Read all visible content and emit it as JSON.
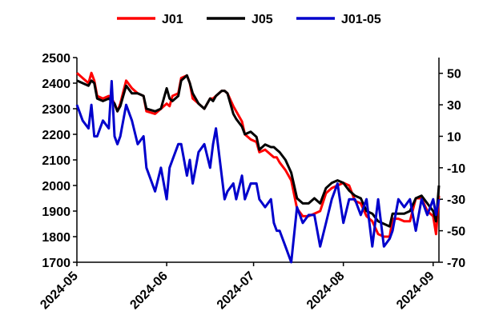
{
  "chart_data": {
    "type": "line",
    "title": "",
    "xlabel": "",
    "ylabel_left": "",
    "ylabel_right": "",
    "legend_position": "top",
    "grid": false,
    "left_axis": {
      "range": [
        1700,
        2500
      ],
      "ticks": [
        1700,
        1800,
        1900,
        2000,
        2100,
        2200,
        2300,
        2400,
        2500
      ]
    },
    "right_axis": {
      "range": [
        -70,
        60
      ],
      "ticks": [
        -70,
        -50,
        -30,
        -10,
        10,
        30,
        50
      ]
    },
    "x_ticks": [
      "2024-05",
      "2024-06",
      "2024-07",
      "2024-08",
      "2024-09"
    ],
    "x_range": [
      "2024-05-01",
      "2024-09-03"
    ],
    "series": [
      {
        "name": "J01",
        "color": "#ff0000",
        "axis": "left",
        "x": [
          "2024-05-01",
          "2024-05-03",
          "2024-05-05",
          "2024-05-06",
          "2024-05-07",
          "2024-05-08",
          "2024-05-10",
          "2024-05-12",
          "2024-05-13",
          "2024-05-14",
          "2024-05-15",
          "2024-05-16",
          "2024-05-18",
          "2024-05-20",
          "2024-05-22",
          "2024-05-24",
          "2024-05-25",
          "2024-05-28",
          "2024-05-30",
          "2024-06-01",
          "2024-06-02",
          "2024-06-03",
          "2024-06-05",
          "2024-06-06",
          "2024-06-08",
          "2024-06-09",
          "2024-06-10",
          "2024-06-11",
          "2024-06-12",
          "2024-06-14",
          "2024-06-16",
          "2024-06-17",
          "2024-06-18",
          "2024-06-20",
          "2024-06-21",
          "2024-06-22",
          "2024-06-24",
          "2024-06-25",
          "2024-06-27",
          "2024-06-28",
          "2024-06-30",
          "2024-07-02",
          "2024-07-03",
          "2024-07-05",
          "2024-07-07",
          "2024-07-08",
          "2024-07-09",
          "2024-07-10",
          "2024-07-12",
          "2024-07-14",
          "2024-07-16",
          "2024-07-18",
          "2024-07-20",
          "2024-07-22",
          "2024-07-24",
          "2024-07-26",
          "2024-07-28",
          "2024-07-30",
          "2024-08-01",
          "2024-08-03",
          "2024-08-05",
          "2024-08-07",
          "2024-08-09",
          "2024-08-11",
          "2024-08-13",
          "2024-08-15",
          "2024-08-17",
          "2024-08-18",
          "2024-08-20",
          "2024-08-22",
          "2024-08-24",
          "2024-08-26",
          "2024-08-28",
          "2024-08-30",
          "2024-09-01",
          "2024-09-02",
          "2024-09-03"
        ],
        "values": [
          2440,
          2420,
          2400,
          2440,
          2410,
          2350,
          2340,
          2350,
          2340,
          2320,
          2290,
          2320,
          2410,
          2380,
          2360,
          2350,
          2290,
          2280,
          2300,
          2320,
          2310,
          2350,
          2360,
          2420,
          2430,
          2400,
          2340,
          2330,
          2320,
          2300,
          2340,
          2340,
          2350,
          2370,
          2370,
          2360,
          2310,
          2290,
          2250,
          2200,
          2180,
          2170,
          2130,
          2140,
          2120,
          2110,
          2110,
          2090,
          2060,
          2020,
          1910,
          1880,
          1880,
          1890,
          1900,
          1970,
          1990,
          2000,
          2010,
          2000,
          1940,
          1930,
          1880,
          1860,
          1810,
          1800,
          1800,
          1870,
          1870,
          1860,
          1860,
          1950,
          1950,
          1900,
          1880,
          1810,
          1960
        ]
      },
      {
        "name": "J05",
        "color": "#000000",
        "axis": "left",
        "x": [
          "2024-05-01",
          "2024-05-03",
          "2024-05-05",
          "2024-05-06",
          "2024-05-07",
          "2024-05-08",
          "2024-05-10",
          "2024-05-12",
          "2024-05-13",
          "2024-05-14",
          "2024-05-15",
          "2024-05-16",
          "2024-05-18",
          "2024-05-20",
          "2024-05-22",
          "2024-05-24",
          "2024-05-25",
          "2024-05-28",
          "2024-05-30",
          "2024-06-01",
          "2024-06-02",
          "2024-06-03",
          "2024-06-05",
          "2024-06-06",
          "2024-06-08",
          "2024-06-09",
          "2024-06-10",
          "2024-06-11",
          "2024-06-12",
          "2024-06-14",
          "2024-06-16",
          "2024-06-17",
          "2024-06-18",
          "2024-06-20",
          "2024-06-21",
          "2024-06-22",
          "2024-06-24",
          "2024-06-25",
          "2024-06-27",
          "2024-06-28",
          "2024-06-30",
          "2024-07-02",
          "2024-07-03",
          "2024-07-05",
          "2024-07-07",
          "2024-07-08",
          "2024-07-09",
          "2024-07-10",
          "2024-07-12",
          "2024-07-14",
          "2024-07-16",
          "2024-07-18",
          "2024-07-20",
          "2024-07-22",
          "2024-07-24",
          "2024-07-26",
          "2024-07-28",
          "2024-07-30",
          "2024-08-01",
          "2024-08-03",
          "2024-08-05",
          "2024-08-07",
          "2024-08-09",
          "2024-08-11",
          "2024-08-13",
          "2024-08-15",
          "2024-08-17",
          "2024-08-18",
          "2024-08-20",
          "2024-08-22",
          "2024-08-24",
          "2024-08-26",
          "2024-08-28",
          "2024-08-30",
          "2024-09-01",
          "2024-09-02",
          "2024-09-03"
        ],
        "values": [
          2410,
          2400,
          2390,
          2410,
          2400,
          2340,
          2330,
          2340,
          2330,
          2320,
          2290,
          2310,
          2390,
          2360,
          2360,
          2350,
          2300,
          2290,
          2300,
          2380,
          2340,
          2330,
          2350,
          2410,
          2430,
          2400,
          2360,
          2340,
          2320,
          2300,
          2340,
          2330,
          2350,
          2370,
          2370,
          2360,
          2280,
          2260,
          2230,
          2200,
          2210,
          2190,
          2140,
          2160,
          2150,
          2150,
          2140,
          2130,
          2100,
          2050,
          1950,
          1930,
          1930,
          1950,
          1930,
          1990,
          2010,
          2020,
          2010,
          1980,
          1960,
          1950,
          1900,
          1890,
          1860,
          1850,
          1840,
          1890,
          1890,
          1890,
          1900,
          1950,
          1960,
          1930,
          1900,
          1860,
          2000
        ]
      },
      {
        "name": "J01-05",
        "color": "#0000cc",
        "axis": "right",
        "x": [
          "2024-05-01",
          "2024-05-03",
          "2024-05-05",
          "2024-05-06",
          "2024-05-07",
          "2024-05-08",
          "2024-05-10",
          "2024-05-12",
          "2024-05-13",
          "2024-05-14",
          "2024-05-15",
          "2024-05-16",
          "2024-05-18",
          "2024-05-20",
          "2024-05-22",
          "2024-05-24",
          "2024-05-25",
          "2024-05-28",
          "2024-05-30",
          "2024-06-01",
          "2024-06-02",
          "2024-06-03",
          "2024-06-05",
          "2024-06-06",
          "2024-06-08",
          "2024-06-09",
          "2024-06-10",
          "2024-06-11",
          "2024-06-12",
          "2024-06-14",
          "2024-06-16",
          "2024-06-17",
          "2024-06-18",
          "2024-06-20",
          "2024-06-21",
          "2024-06-22",
          "2024-06-24",
          "2024-06-25",
          "2024-06-27",
          "2024-06-28",
          "2024-06-30",
          "2024-07-02",
          "2024-07-03",
          "2024-07-05",
          "2024-07-07",
          "2024-07-08",
          "2024-07-09",
          "2024-07-10",
          "2024-07-12",
          "2024-07-14",
          "2024-07-16",
          "2024-07-18",
          "2024-07-20",
          "2024-07-22",
          "2024-07-24",
          "2024-07-26",
          "2024-07-28",
          "2024-07-30",
          "2024-08-01",
          "2024-08-03",
          "2024-08-05",
          "2024-08-07",
          "2024-08-09",
          "2024-08-11",
          "2024-08-13",
          "2024-08-15",
          "2024-08-17",
          "2024-08-18",
          "2024-08-20",
          "2024-08-22",
          "2024-08-24",
          "2024-08-26",
          "2024-08-28",
          "2024-08-30",
          "2024-09-01",
          "2024-09-02",
          "2024-09-03"
        ],
        "values": [
          30,
          20,
          15,
          30,
          10,
          10,
          20,
          15,
          45,
          10,
          5,
          10,
          30,
          20,
          5,
          10,
          -10,
          -25,
          -10,
          -30,
          -10,
          -5,
          5,
          5,
          -15,
          -5,
          -20,
          -10,
          0,
          5,
          -10,
          5,
          15,
          -15,
          -30,
          -25,
          -20,
          -30,
          -15,
          -30,
          -20,
          -20,
          -30,
          -35,
          -30,
          -45,
          -50,
          -50,
          -60,
          -70,
          -35,
          -45,
          -40,
          -40,
          -60,
          -45,
          -30,
          -20,
          -45,
          -30,
          -30,
          -40,
          -30,
          -60,
          -30,
          -60,
          -55,
          -50,
          -30,
          -35,
          -30,
          -50,
          -30,
          -40,
          -30,
          -40,
          -30
        ]
      }
    ]
  }
}
